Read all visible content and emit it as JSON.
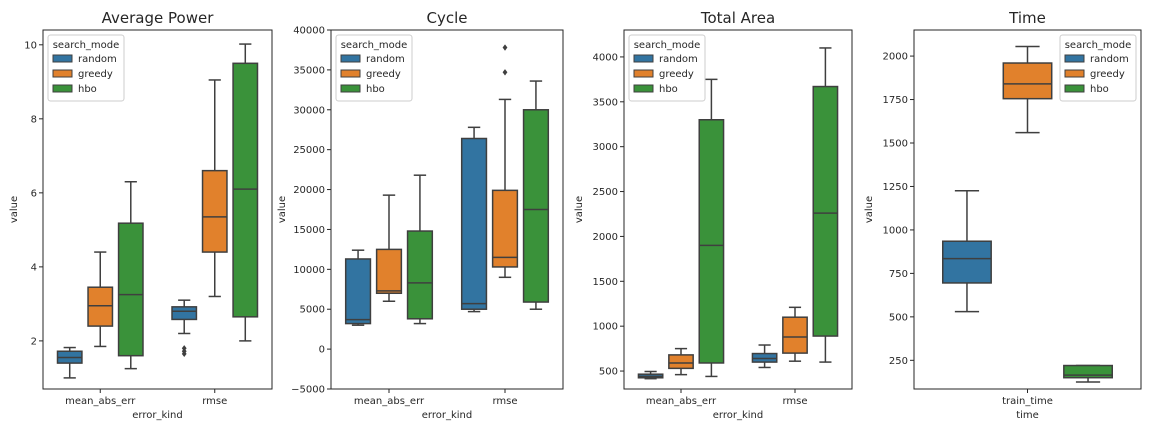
{
  "colors": {
    "random": "#3274a1",
    "greedy": "#e1812c",
    "hbo": "#3a923a",
    "line": "#3f3f3f"
  },
  "legend": {
    "title": "search_mode",
    "entries": [
      "random",
      "greedy",
      "hbo"
    ]
  },
  "chart_data": [
    {
      "type": "box",
      "title": "Average Power",
      "xlabel": "error_kind",
      "ylabel": "value",
      "categories": [
        "mean_abs_err",
        "rmse"
      ],
      "ylim": [
        0.7,
        10.4
      ],
      "yticks": [
        2,
        4,
        6,
        8,
        10
      ],
      "ytick_labels": [
        "2",
        "4",
        "6",
        "8",
        "10"
      ],
      "legend_placement": "top-left",
      "series": [
        {
          "name": "random",
          "boxes": [
            {
              "whislo": 1.0,
              "q1": 1.4,
              "med": 1.55,
              "q3": 1.72,
              "whishi": 1.82,
              "fliers": []
            },
            {
              "whislo": 2.2,
              "q1": 2.58,
              "med": 2.8,
              "q3": 2.92,
              "whishi": 3.1,
              "fliers": [
                1.65,
                1.72,
                1.8
              ]
            }
          ]
        },
        {
          "name": "greedy",
          "boxes": [
            {
              "whislo": 1.85,
              "q1": 2.4,
              "med": 2.95,
              "q3": 3.45,
              "whishi": 4.4,
              "fliers": []
            },
            {
              "whislo": 3.2,
              "q1": 4.4,
              "med": 5.35,
              "q3": 6.6,
              "whishi": 9.05,
              "fliers": []
            }
          ]
        },
        {
          "name": "hbo",
          "boxes": [
            {
              "whislo": 1.25,
              "q1": 1.6,
              "med": 3.25,
              "q3": 5.18,
              "whishi": 6.3,
              "fliers": []
            },
            {
              "whislo": 2.0,
              "q1": 2.65,
              "med": 6.1,
              "q3": 9.5,
              "whishi": 10.02,
              "fliers": []
            }
          ]
        }
      ]
    },
    {
      "type": "box",
      "title": "Cycle",
      "xlabel": "error_kind",
      "ylabel": "value",
      "categories": [
        "mean_abs_err",
        "rmse"
      ],
      "ylim": [
        -5000,
        40000
      ],
      "yticks": [
        -5000,
        0,
        5000,
        10000,
        15000,
        20000,
        25000,
        30000,
        35000,
        40000
      ],
      "ytick_labels": [
        "−5000",
        "0",
        "5000",
        "10000",
        "15000",
        "20000",
        "25000",
        "30000",
        "35000",
        "40000"
      ],
      "legend_placement": "top-left",
      "series": [
        {
          "name": "random",
          "boxes": [
            {
              "whislo": 3000,
              "q1": 3200,
              "med": 3700,
              "q3": 11300,
              "whishi": 12400,
              "fliers": []
            },
            {
              "whislo": 4700,
              "q1": 5000,
              "med": 5700,
              "q3": 26400,
              "whishi": 27800,
              "fliers": []
            }
          ]
        },
        {
          "name": "greedy",
          "boxes": [
            {
              "whislo": 6000,
              "q1": 7000,
              "med": 7300,
              "q3": 12500,
              "whishi": 19300,
              "fliers": []
            },
            {
              "whislo": 9000,
              "q1": 10300,
              "med": 11500,
              "q3": 19900,
              "whishi": 31300,
              "fliers": [
                34700,
                37800
              ]
            }
          ]
        },
        {
          "name": "hbo",
          "boxes": [
            {
              "whislo": 3200,
              "q1": 3800,
              "med": 8300,
              "q3": 14800,
              "whishi": 21800,
              "fliers": []
            },
            {
              "whislo": 5000,
              "q1": 5900,
              "med": 17500,
              "q3": 30000,
              "whishi": 33600,
              "fliers": []
            }
          ]
        }
      ]
    },
    {
      "type": "box",
      "title": "Total Area",
      "xlabel": "error_kind",
      "ylabel": "value",
      "categories": [
        "mean_abs_err",
        "rmse"
      ],
      "ylim": [
        300,
        4300
      ],
      "yticks": [
        500,
        1000,
        1500,
        2000,
        2500,
        3000,
        3500,
        4000
      ],
      "ytick_labels": [
        "500",
        "1000",
        "1500",
        "2000",
        "2500",
        "3000",
        "3500",
        "4000"
      ],
      "legend_placement": "top-left",
      "series": [
        {
          "name": "random",
          "boxes": [
            {
              "whislo": 415,
              "q1": 425,
              "med": 440,
              "q3": 465,
              "whishi": 495,
              "fliers": []
            },
            {
              "whislo": 540,
              "q1": 600,
              "med": 640,
              "q3": 695,
              "whishi": 790,
              "fliers": []
            }
          ]
        },
        {
          "name": "greedy",
          "boxes": [
            {
              "whislo": 460,
              "q1": 530,
              "med": 590,
              "q3": 680,
              "whishi": 750,
              "fliers": []
            },
            {
              "whislo": 610,
              "q1": 700,
              "med": 880,
              "q3": 1100,
              "whishi": 1210,
              "fliers": []
            }
          ]
        },
        {
          "name": "hbo",
          "boxes": [
            {
              "whislo": 440,
              "q1": 590,
              "med": 1900,
              "q3": 3300,
              "whishi": 3750,
              "fliers": []
            },
            {
              "whislo": 600,
              "q1": 890,
              "med": 2260,
              "q3": 3670,
              "whishi": 4100,
              "fliers": []
            }
          ]
        }
      ]
    },
    {
      "type": "box",
      "title": "Time",
      "xlabel": "time",
      "ylabel": "value",
      "categories": [
        "train_time"
      ],
      "ylim": [
        85,
        2150
      ],
      "yticks": [
        250,
        500,
        750,
        1000,
        1250,
        1500,
        1750,
        2000
      ],
      "ytick_labels": [
        "250",
        "500",
        "750",
        "1000",
        "1250",
        "1500",
        "1750",
        "2000"
      ],
      "legend_placement": "top-right",
      "series": [
        {
          "name": "random",
          "boxes": [
            {
              "whislo": 530,
              "q1": 695,
              "med": 835,
              "q3": 935,
              "whishi": 1225,
              "fliers": []
            }
          ]
        },
        {
          "name": "greedy",
          "boxes": [
            {
              "whislo": 1560,
              "q1": 1755,
              "med": 1840,
              "q3": 1960,
              "whishi": 2055,
              "fliers": []
            }
          ]
        },
        {
          "name": "hbo",
          "boxes": [
            {
              "whislo": 125,
              "q1": 150,
              "med": 165,
              "q3": 220,
              "whishi": 220,
              "fliers": []
            }
          ]
        }
      ]
    }
  ]
}
